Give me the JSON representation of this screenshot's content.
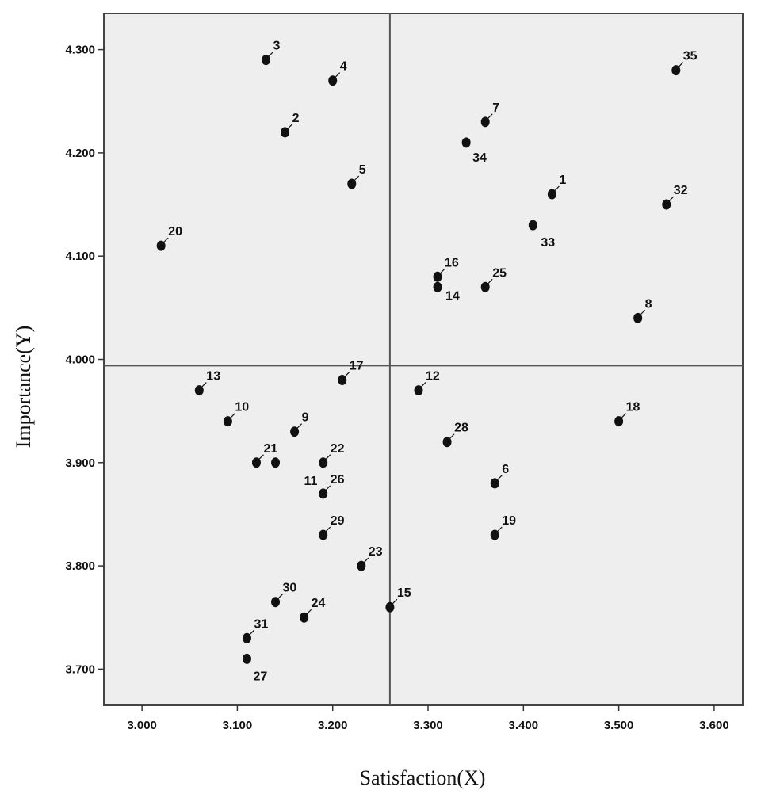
{
  "chart_data": {
    "type": "scatter",
    "title": "",
    "xlabel": "Satisfaction(X)",
    "ylabel": "Importance(Y)",
    "xlim": [
      2.96,
      3.63
    ],
    "ylim": [
      3.665,
      4.335
    ],
    "x_ticks": [
      3.0,
      3.1,
      3.2,
      3.3,
      3.4,
      3.5,
      3.6
    ],
    "x_tick_labels": [
      "3.000",
      "3.100",
      "3.200",
      "3.300",
      "3.400",
      "3.500",
      "3.600"
    ],
    "y_ticks": [
      3.7,
      3.8,
      3.9,
      4.0,
      4.1,
      4.2,
      4.3
    ],
    "y_tick_labels": [
      "3.700",
      "3.800",
      "3.900",
      "4.000",
      "4.100",
      "4.200",
      "4.300"
    ],
    "reference_lines": {
      "x": 3.26,
      "y": 3.994
    },
    "grid": false,
    "legend": "none",
    "colors": {
      "plot_background": "#eeeeee",
      "point": "#111111",
      "reference_line": "#555555",
      "frame": "#444444"
    },
    "points": [
      {
        "label": "1",
        "x": 3.43,
        "y": 4.16
      },
      {
        "label": "2",
        "x": 3.15,
        "y": 4.22
      },
      {
        "label": "3",
        "x": 3.13,
        "y": 4.29
      },
      {
        "label": "4",
        "x": 3.2,
        "y": 4.27
      },
      {
        "label": "5",
        "x": 3.22,
        "y": 4.17
      },
      {
        "label": "6",
        "x": 3.37,
        "y": 3.88
      },
      {
        "label": "7",
        "x": 3.36,
        "y": 4.23
      },
      {
        "label": "8",
        "x": 3.52,
        "y": 4.04
      },
      {
        "label": "9",
        "x": 3.16,
        "y": 3.93
      },
      {
        "label": "10",
        "x": 3.09,
        "y": 3.94
      },
      {
        "label": "11",
        "x": 3.14,
        "y": 3.9
      },
      {
        "label": "12",
        "x": 3.29,
        "y": 3.97
      },
      {
        "label": "13",
        "x": 3.06,
        "y": 3.97
      },
      {
        "label": "14",
        "x": 3.31,
        "y": 4.07
      },
      {
        "label": "15",
        "x": 3.26,
        "y": 3.76
      },
      {
        "label": "16",
        "x": 3.31,
        "y": 4.08
      },
      {
        "label": "17",
        "x": 3.21,
        "y": 3.98
      },
      {
        "label": "18",
        "x": 3.5,
        "y": 3.94
      },
      {
        "label": "19",
        "x": 3.37,
        "y": 3.83
      },
      {
        "label": "20",
        "x": 3.02,
        "y": 4.11
      },
      {
        "label": "21",
        "x": 3.12,
        "y": 3.9
      },
      {
        "label": "22",
        "x": 3.19,
        "y": 3.9
      },
      {
        "label": "23",
        "x": 3.23,
        "y": 3.8
      },
      {
        "label": "24",
        "x": 3.17,
        "y": 3.75
      },
      {
        "label": "25",
        "x": 3.36,
        "y": 4.07
      },
      {
        "label": "26",
        "x": 3.19,
        "y": 3.87
      },
      {
        "label": "27",
        "x": 3.11,
        "y": 3.71
      },
      {
        "label": "28",
        "x": 3.32,
        "y": 3.92
      },
      {
        "label": "29",
        "x": 3.19,
        "y": 3.83
      },
      {
        "label": "30",
        "x": 3.14,
        "y": 3.765
      },
      {
        "label": "31",
        "x": 3.11,
        "y": 3.73
      },
      {
        "label": "32",
        "x": 3.55,
        "y": 4.15
      },
      {
        "label": "33",
        "x": 3.41,
        "y": 4.13
      },
      {
        "label": "34",
        "x": 3.34,
        "y": 4.21
      },
      {
        "label": "35",
        "x": 3.56,
        "y": 4.28
      }
    ]
  }
}
